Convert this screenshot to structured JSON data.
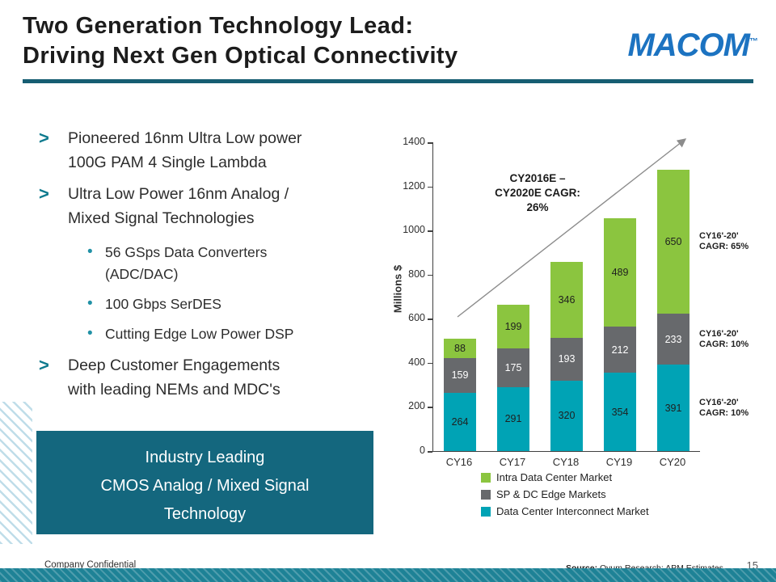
{
  "slide": {
    "title": "Two Generation Technology Lead:\nDriving Next Gen Optical Connectivity",
    "logo_text": "MACOM",
    "logo_tm": "™"
  },
  "bullets": {
    "items": [
      {
        "marker": ">",
        "text": "Pioneered 16nm  Ultra Low power\n100G PAM 4 Single Lambda"
      },
      {
        "marker": ">",
        "text": "Ultra Low Power 16nm Analog /\nMixed Signal Technologies"
      },
      {
        "marker": "•",
        "text": "56 GSps Data Converters\n(ADC/DAC)"
      },
      {
        "marker": "•",
        "text": "100 Gbps SerDES"
      },
      {
        "marker": "•",
        "text": "Cutting Edge Low Power DSP"
      },
      {
        "marker": ">",
        "text": "Deep Customer Engagements\nwith leading NEMs and MDC's"
      }
    ]
  },
  "highlight_box": {
    "text": "Industry Leading\nCMOS Analog / Mixed Signal\nTechnology",
    "background": "#14677e"
  },
  "chart_data": {
    "type": "bar",
    "stacked": true,
    "ylabel": "Millions $",
    "ylim": [
      0,
      1400
    ],
    "yticks": [
      0,
      200,
      400,
      600,
      800,
      1000,
      1200,
      1400
    ],
    "categories": [
      "CY16",
      "CY17",
      "CY18",
      "CY19",
      "CY20"
    ],
    "series": [
      {
        "name": "Data Center Interconnect Market",
        "color": "#00a3b5",
        "label_color": "#1f1f1f",
        "values": [
          264,
          291,
          320,
          354,
          391
        ]
      },
      {
        "name": "SP & DC Edge Markets",
        "color": "#67696c",
        "label_color": "#ffffff",
        "values": [
          159,
          175,
          193,
          212,
          233
        ]
      },
      {
        "name": "Intra Data Center Market",
        "color": "#8bc53f",
        "label_color": "#1f1f1f",
        "values": [
          88,
          199,
          346,
          489,
          650
        ]
      }
    ],
    "legend_position": "bottom-left",
    "grid": false,
    "annotation_main": "CY2016E –\nCY2020E CAGR:\n26%",
    "side_annotations": [
      {
        "text": "CY16'-20'\nCAGR: 65%",
        "series_index": 2
      },
      {
        "text": "CY16'-20'\nCAGR: 10%",
        "series_index": 1
      },
      {
        "text": "CY16'-20'\nCAGR: 10%",
        "series_index": 0
      }
    ]
  },
  "footer": {
    "confidential": "Company Confidential",
    "source_label": "Source:",
    "source_rest": " Ovum Research; APM Estimates",
    "page": "15"
  }
}
